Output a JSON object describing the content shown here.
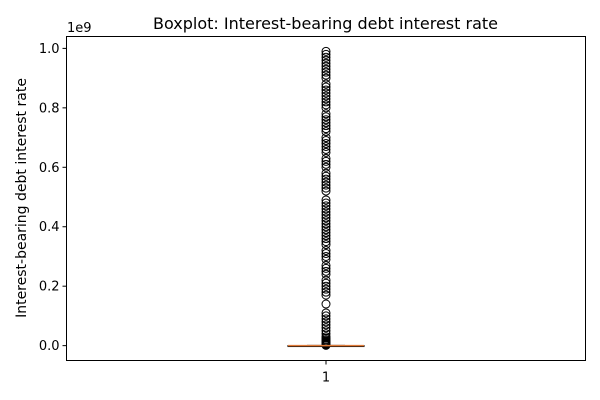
{
  "chart_data": {
    "type": "box",
    "title": "Boxplot:  Interest-bearing debt interest rate",
    "xlabel": "",
    "ylabel": "Interest-bearing debt interest rate",
    "y_offset_label": "1e9",
    "scale": 1000000000,
    "ylim": [
      -0.05,
      1.04
    ],
    "yticks": [
      0.0,
      0.2,
      0.4,
      0.6,
      0.8,
      1.0
    ],
    "ytick_labels": [
      "0.0",
      "0.2",
      "0.4",
      "0.6",
      "0.8",
      "1.0"
    ],
    "xticks": [
      "1"
    ],
    "grid": false,
    "box": {
      "category": "1",
      "q1": 0.0,
      "median": 0.0,
      "q3": 0.0003,
      "whisker_low": 0.0,
      "whisker_high": 0.0007
    },
    "outliers": [
      0.001,
      0.002,
      0.003,
      0.004,
      0.005,
      0.006,
      0.007,
      0.008,
      0.009,
      0.011,
      0.013,
      0.016,
      0.02,
      0.025,
      0.03,
      0.04,
      0.05,
      0.06,
      0.07,
      0.08,
      0.09,
      0.1,
      0.11,
      0.14,
      0.17,
      0.18,
      0.19,
      0.2,
      0.21,
      0.22,
      0.24,
      0.25,
      0.26,
      0.27,
      0.29,
      0.3,
      0.31,
      0.32,
      0.34,
      0.35,
      0.36,
      0.37,
      0.38,
      0.39,
      0.4,
      0.41,
      0.42,
      0.43,
      0.44,
      0.45,
      0.46,
      0.47,
      0.48,
      0.49,
      0.52,
      0.53,
      0.54,
      0.55,
      0.56,
      0.57,
      0.58,
      0.6,
      0.61,
      0.62,
      0.63,
      0.65,
      0.66,
      0.67,
      0.68,
      0.69,
      0.7,
      0.72,
      0.73,
      0.74,
      0.75,
      0.76,
      0.77,
      0.78,
      0.8,
      0.81,
      0.82,
      0.83,
      0.84,
      0.85,
      0.86,
      0.87,
      0.88,
      0.9,
      0.91,
      0.92,
      0.93,
      0.94,
      0.95,
      0.96,
      0.97,
      0.98,
      0.99
    ]
  }
}
